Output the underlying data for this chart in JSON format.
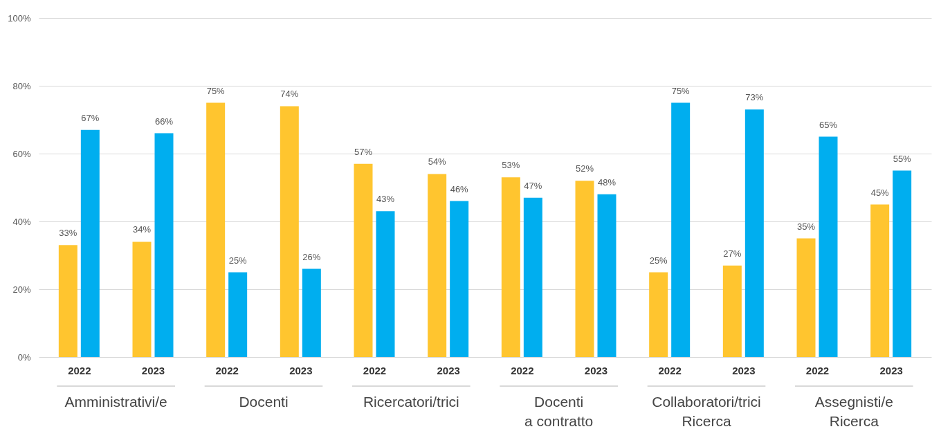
{
  "chart_data": {
    "type": "bar",
    "categories": [
      "2022",
      "2023",
      "2022",
      "2023",
      "2022",
      "2023",
      "2022",
      "2023",
      "2022",
      "2023",
      "2022",
      "2023"
    ],
    "series": [
      {
        "color": "#ffc52f",
        "values": [
          33,
          34,
          75,
          74,
          57,
          54,
          53,
          52,
          25,
          27,
          35,
          45
        ],
        "value_labels": [
          "33%",
          "34%",
          "75%",
          "74%",
          "57%",
          "54%",
          "53%",
          "52%",
          "25%",
          "27%",
          "35%",
          "45%"
        ]
      },
      {
        "color": "#00aeef",
        "values": [
          67,
          66,
          25,
          26,
          43,
          46,
          47,
          48,
          75,
          73,
          65,
          55
        ],
        "value_labels": [
          "67%",
          "66%",
          "25%",
          "26%",
          "43%",
          "46%",
          "47%",
          "48%",
          "75%",
          "73%",
          "65%",
          "55%"
        ]
      }
    ],
    "ylim": [
      0,
      100
    ],
    "yticks": [
      {
        "value": 0,
        "label": "0%"
      },
      {
        "value": 20,
        "label": "20%"
      },
      {
        "value": 40,
        "label": "40%"
      },
      {
        "value": 60,
        "label": "60%"
      },
      {
        "value": 80,
        "label": "80%"
      },
      {
        "value": 100,
        "label": "100%"
      }
    ],
    "grid": "y",
    "annotations": [
      "Amministrativi/e",
      "Docenti",
      "Ricercatori/trici",
      "Docenti\na contratto",
      "Collaboratori/trici\nRicerca",
      "Assegnisti/e\nRicerca"
    ]
  }
}
